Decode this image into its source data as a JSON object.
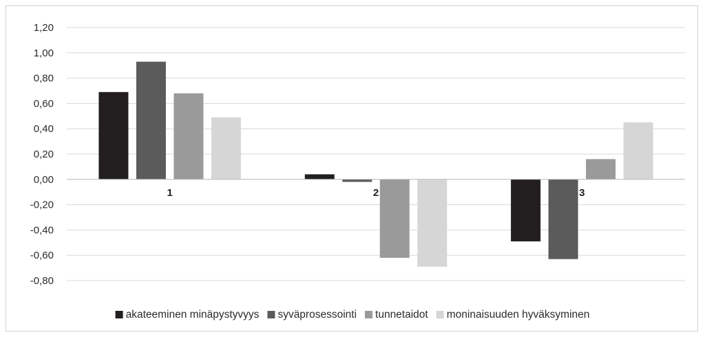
{
  "chart_data": {
    "type": "bar",
    "categories": [
      "1",
      "2",
      "3"
    ],
    "series": [
      {
        "name": "akateeminen minäpystyvyys",
        "color": "#231f20",
        "values": [
          0.69,
          0.04,
          -0.49
        ]
      },
      {
        "name": "syväprosessointi",
        "color": "#5b5b5b",
        "values": [
          0.93,
          -0.02,
          -0.63
        ]
      },
      {
        "name": "tunnetaidot",
        "color": "#9a9a9a",
        "values": [
          0.68,
          -0.62,
          0.16
        ]
      },
      {
        "name": "moninaisuuden hyväksyminen",
        "color": "#d6d6d6",
        "values": [
          0.49,
          -0.69,
          0.45
        ]
      }
    ],
    "ylim": [
      -0.8,
      1.2
    ],
    "yticks": [
      1.2,
      1.0,
      0.8,
      0.6,
      0.4,
      0.2,
      0.0,
      -0.2,
      -0.4,
      -0.6,
      -0.8
    ],
    "ytick_labels": [
      "1,20",
      "1,00",
      "0,80",
      "0,60",
      "0,40",
      "0,20",
      "0,00",
      "-0,20",
      "-0,40",
      "-0,60",
      "-0,80"
    ],
    "grid": true,
    "legend": "bottom",
    "title": "",
    "xlabel": "",
    "ylabel": ""
  }
}
